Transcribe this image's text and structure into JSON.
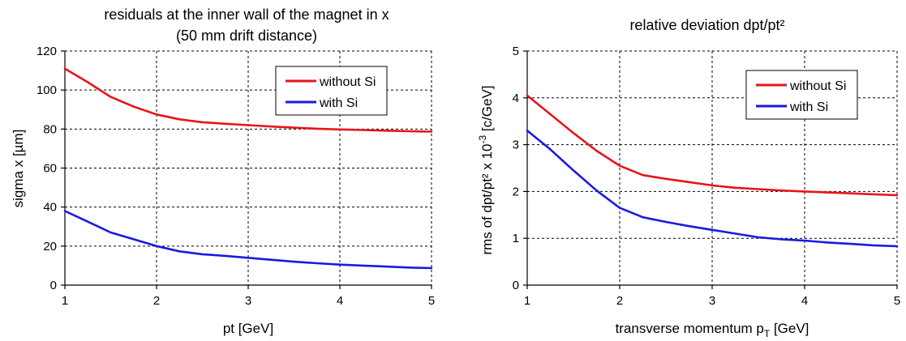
{
  "chart_data": [
    {
      "type": "line",
      "title_lines": [
        "residuals at the inner wall of the magnet in x",
        "(50 mm drift distance)"
      ],
      "xlabel": "pt [GeV]",
      "ylabel": "sigma x [µm]",
      "xlim": [
        1,
        5
      ],
      "ylim": [
        0,
        120
      ],
      "xticks": [
        1,
        2,
        3,
        4,
        5
      ],
      "yticks": [
        0,
        20,
        40,
        60,
        80,
        100,
        120
      ],
      "grid": "dashed",
      "legend": "top-right",
      "series": [
        {
          "name": "without Si",
          "color": "#e8141b",
          "x": [
            1,
            1.25,
            1.5,
            1.75,
            2,
            2.25,
            2.5,
            2.75,
            3,
            3.25,
            3.5,
            3.75,
            4,
            4.25,
            4.5,
            4.75,
            5
          ],
          "y": [
            111,
            104,
            96.5,
            91.5,
            87.5,
            85,
            83.5,
            82.7,
            82,
            81.3,
            80.7,
            80.2,
            79.8,
            79.5,
            79.2,
            78.9,
            78.7
          ]
        },
        {
          "name": "with Si",
          "color": "#1a1adf",
          "x": [
            1,
            1.25,
            1.5,
            1.75,
            2,
            2.25,
            2.5,
            2.75,
            3,
            3.25,
            3.5,
            3.75,
            4,
            4.25,
            4.5,
            4.75,
            5
          ],
          "y": [
            38,
            32.5,
            27,
            23.5,
            20,
            17.3,
            15.8,
            15,
            14,
            13,
            12,
            11.2,
            10.5,
            10,
            9.5,
            9,
            8.7
          ]
        }
      ]
    },
    {
      "type": "line",
      "title_lines": [
        "relative deviation dpt/pt²"
      ],
      "xlabel": "transverse momentum p",
      "xlabel_sub": "T",
      "xlabel_unit": " [GeV]",
      "ylabel": "rms of dpt/pt² x 10",
      "ylabel_sup": "-3",
      "ylabel_unit": " [c/GeV]",
      "xlim": [
        1,
        5
      ],
      "ylim": [
        0,
        5
      ],
      "xticks": [
        1,
        2,
        3,
        4,
        5
      ],
      "yticks": [
        0,
        1,
        2,
        3,
        4,
        5
      ],
      "grid": "dashed",
      "legend": "top-right",
      "series": [
        {
          "name": "without Si",
          "color": "#e8141b",
          "x": [
            1,
            1.25,
            1.5,
            1.75,
            2,
            2.25,
            2.5,
            2.75,
            3,
            3.25,
            3.5,
            3.75,
            4,
            4.25,
            4.5,
            4.75,
            5
          ],
          "y": [
            4.05,
            3.65,
            3.25,
            2.87,
            2.55,
            2.35,
            2.27,
            2.2,
            2.13,
            2.08,
            2.05,
            2.02,
            2.0,
            1.98,
            1.96,
            1.94,
            1.92
          ]
        },
        {
          "name": "with Si",
          "color": "#1a1adf",
          "x": [
            1,
            1.25,
            1.5,
            1.75,
            2,
            2.25,
            2.5,
            2.75,
            3,
            3.25,
            3.5,
            3.75,
            4,
            4.25,
            4.5,
            4.75,
            5
          ],
          "y": [
            3.3,
            2.9,
            2.45,
            2.02,
            1.65,
            1.45,
            1.35,
            1.26,
            1.18,
            1.1,
            1.02,
            0.98,
            0.95,
            0.91,
            0.88,
            0.85,
            0.83
          ]
        }
      ]
    }
  ]
}
